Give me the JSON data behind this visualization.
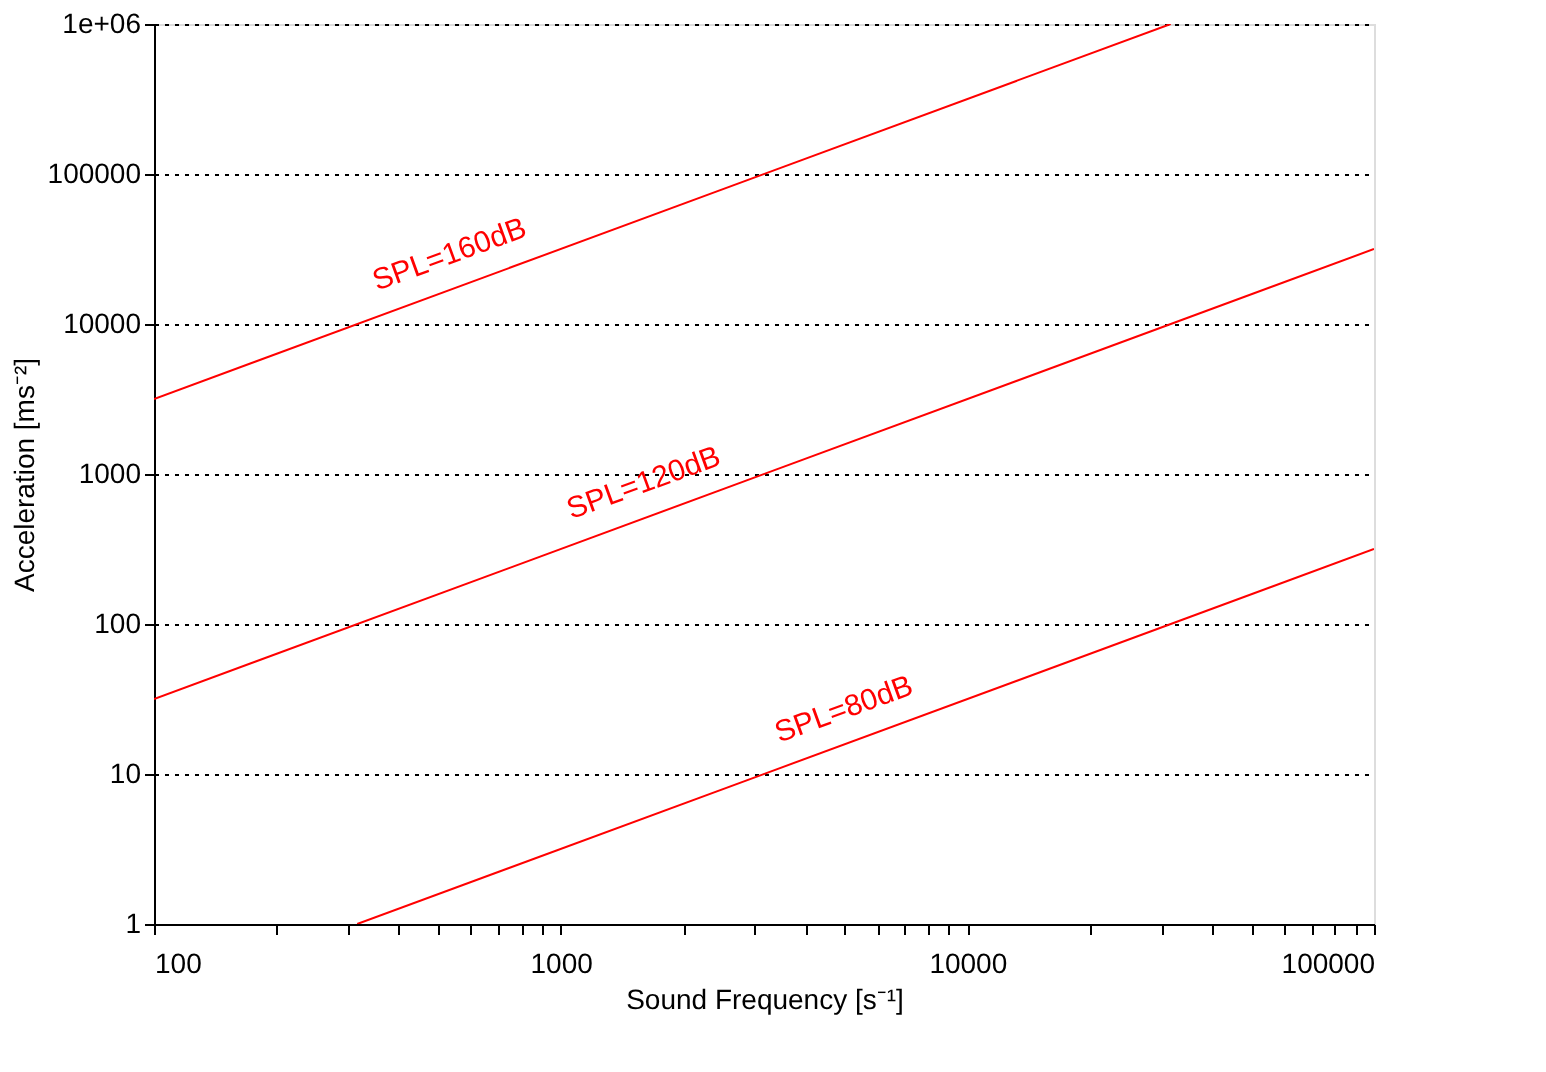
{
  "chart_data": {
    "type": "line",
    "xlabel": "Sound Frequency [s⁻¹]",
    "ylabel": "Acceleration [ms⁻²]",
    "log": "xy",
    "grid": "y",
    "legend": false,
    "marker": "none",
    "line_style": "solid",
    "xlim": [
      100,
      100000
    ],
    "ylim": [
      1,
      1000000
    ],
    "xticks": [
      100,
      {
        "value": 200,
        "label": null
      },
      {
        "value": 300,
        "label": null
      },
      {
        "value": 400,
        "label": null
      },
      {
        "value": 500,
        "label": null
      },
      {
        "value": 600,
        "label": null
      },
      {
        "value": 700,
        "label": null
      },
      {
        "value": 800,
        "label": null
      },
      {
        "value": 900,
        "label": null
      },
      1000,
      {
        "value": 2000,
        "label": null
      },
      {
        "value": 3000,
        "label": null
      },
      {
        "value": 4000,
        "label": null
      },
      {
        "value": 5000,
        "label": null
      },
      {
        "value": 6000,
        "label": null
      },
      {
        "value": 7000,
        "label": null
      },
      {
        "value": 8000,
        "label": null
      },
      {
        "value": 9000,
        "label": null
      },
      10000,
      {
        "value": 20000,
        "label": null
      },
      {
        "value": 30000,
        "label": null
      },
      {
        "value": 40000,
        "label": null
      },
      {
        "value": 50000,
        "label": null
      },
      {
        "value": 60000,
        "label": null
      },
      {
        "value": 70000,
        "label": null
      },
      {
        "value": 80000,
        "label": null
      },
      {
        "value": 90000,
        "label": null
      },
      100000
    ],
    "yticks": [
      1,
      10,
      100,
      1000,
      10000,
      100000,
      {
        "value": 1000000,
        "label": "1e+06"
      }
    ],
    "series": [
      {
        "color": "#ff0000",
        "x": [
          100,
          31623
        ],
        "values": [
          3162,
          1000000
        ]
      },
      {
        "color": "#ff0000",
        "x": [
          100,
          100000
        ],
        "values": [
          31.6,
          31623
        ]
      },
      {
        "color": "#ff0000",
        "x": [
          316,
          100000
        ],
        "values": [
          1,
          316
        ]
      }
    ],
    "annotations": [
      {
        "text": "SPL=160dB",
        "x": 568,
        "y": 17960
      },
      {
        "text": "SPL=120dB",
        "x": 1706,
        "y": 539
      },
      {
        "text": "SPL=80dB",
        "x": 5300,
        "y": 16.7
      }
    ]
  }
}
